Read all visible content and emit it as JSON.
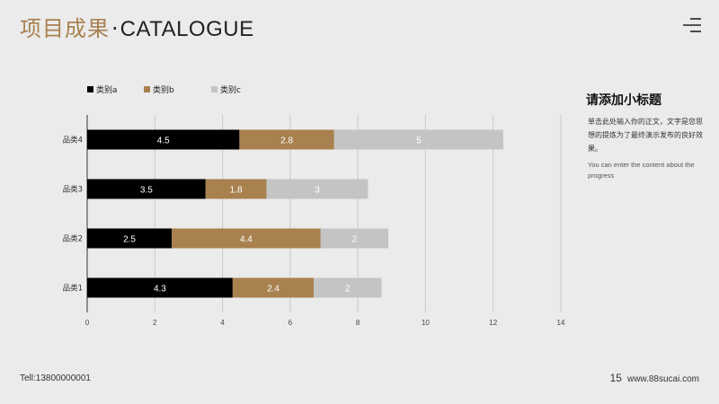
{
  "header": {
    "title_cn": "项目成果",
    "separator": "·",
    "title_en": "CATALOGUE"
  },
  "icons": {
    "menu": "menu-lines-icon"
  },
  "side_panel": {
    "title": "请添加小标题",
    "body": "单击此处输入你的正文，文字是您思想的提炼为了最终演示发布的良好效果。",
    "english": "You can enter the content about the progress"
  },
  "footer": {
    "tel": "Tell:13800000001",
    "page_number": "15",
    "website": "www.88sucai.com"
  },
  "colors": {
    "accent": "#a8814f",
    "series_a": "#000000",
    "series_b": "#a8814f",
    "series_c": "#c4c4c4",
    "background": "#ebebeb"
  },
  "chart_data": {
    "type": "bar",
    "orientation": "horizontal",
    "stacked": true,
    "categories": [
      "品类1",
      "品类2",
      "品类3",
      "品类4"
    ],
    "series": [
      {
        "name": "类别a",
        "values": [
          4.3,
          2.5,
          3.5,
          4.5
        ]
      },
      {
        "name": "类别b",
        "values": [
          2.4,
          4.4,
          1.8,
          2.8
        ]
      },
      {
        "name": "类别c",
        "values": [
          2,
          2,
          3,
          5
        ]
      }
    ],
    "x_ticks": [
      0,
      2,
      4,
      6,
      8,
      10,
      12,
      14
    ],
    "xlim": [
      0,
      14
    ],
    "grid": "vertical",
    "legend_position": "top-left",
    "data_labels": true
  }
}
